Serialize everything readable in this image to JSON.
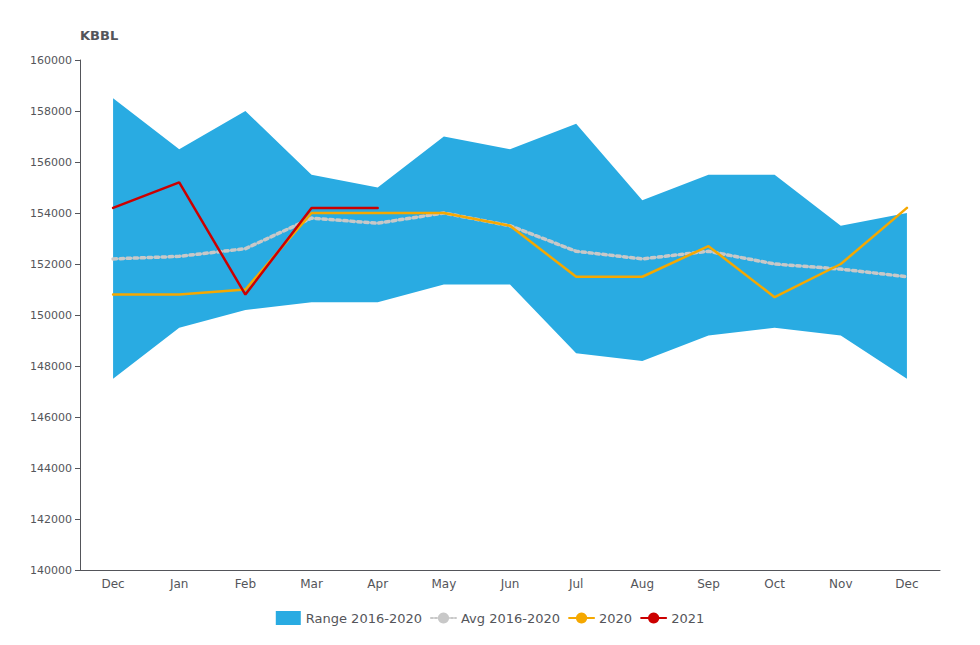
{
  "chart_data": {
    "type": "line",
    "y_label": "KBBL",
    "categories": [
      "Dec",
      "Jan",
      "Feb",
      "Mar",
      "Apr",
      "May",
      "Jun",
      "Jul",
      "Aug",
      "Sep",
      "Oct",
      "Nov",
      "Dec"
    ],
    "series": [
      {
        "name": "Range 2016-2020",
        "type": "range",
        "color": "#29ABE2",
        "low": [
          147500,
          149500,
          150200,
          150500,
          150500,
          151200,
          151200,
          148500,
          148200,
          149200,
          149500,
          149200,
          147500
        ],
        "high": [
          158500,
          156500,
          158000,
          155500,
          155000,
          157000,
          156500,
          157500,
          154500,
          155500,
          155500,
          153500,
          154000
        ]
      },
      {
        "name": "Avg 2016-2020",
        "type": "line",
        "color": "#C8C8C8",
        "line_style": "dotted",
        "values": [
          152200,
          152300,
          152600,
          153800,
          153600,
          154000,
          153500,
          152500,
          152200,
          152500,
          152000,
          151800,
          151500
        ]
      },
      {
        "name": "2020",
        "type": "line",
        "color": "#F5A800",
        "values": [
          150800,
          150800,
          151000,
          154000,
          154000,
          154000,
          153500,
          151500,
          151500,
          152700,
          150700,
          152000,
          154200
        ]
      },
      {
        "name": "2021",
        "type": "line",
        "color": "#CC0000",
        "values": [
          154200,
          155200,
          150800,
          154200,
          154200,
          null,
          null,
          null,
          null,
          null,
          null,
          null,
          null
        ]
      }
    ],
    "ylim": [
      140000,
      160000
    ],
    "yticks": [
      140000,
      142000,
      144000,
      146000,
      148000,
      150000,
      152000,
      154000,
      156000,
      158000,
      160000
    ],
    "grid": false,
    "legend": "bottom"
  }
}
